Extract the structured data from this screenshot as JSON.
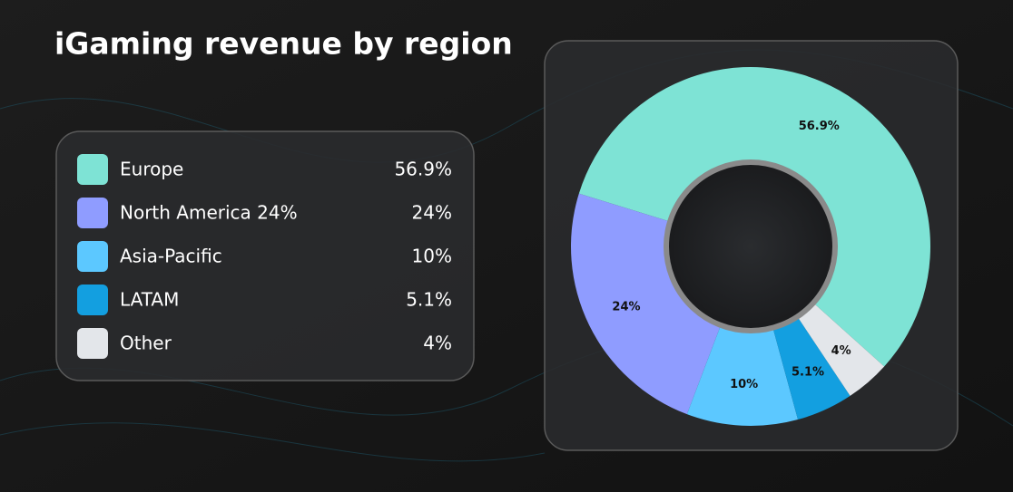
{
  "chart_data": {
    "type": "donut",
    "title": "iGaming revenue by region",
    "categories": [
      "Europe",
      "North America 24%",
      "Asia-Pacific",
      "LATAM",
      "Other"
    ],
    "values": [
      56.9,
      24,
      10,
      5.1,
      4
    ],
    "value_labels": [
      "56.9%",
      "24%",
      "10%",
      "5.1%",
      "4%"
    ],
    "colors": [
      "#7ee3d5",
      "#8f9cff",
      "#5cc8ff",
      "#139fe0",
      "#e3e6ea"
    ]
  }
}
